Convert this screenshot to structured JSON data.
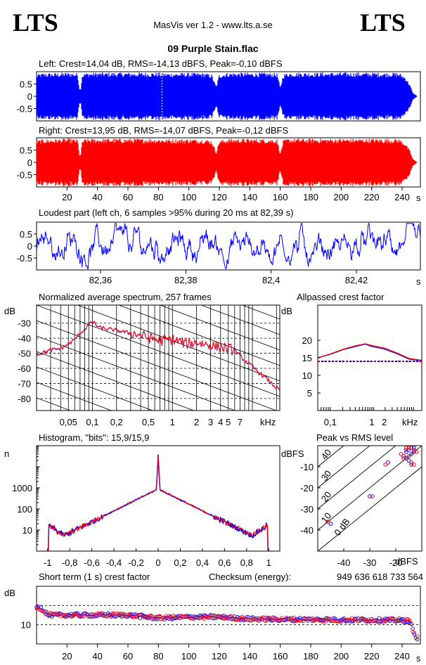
{
  "header": {
    "logo_left": "LTS",
    "logo_right": "LTS",
    "app": "MasVis ver 1.2 - www.lts.a.se",
    "file": "09 Purple Stain.flac"
  },
  "colors": {
    "left": "#0000ff",
    "right": "#ff0000"
  },
  "chart_data": [
    {
      "id": "left-waveform",
      "type": "area",
      "title": "Left: Crest=14,04 dB, RMS=-14,13 dBFS, Peak=-0,10 dBFS",
      "ytick_labels": [
        "0.5",
        "0",
        "-0.5"
      ],
      "ylim": [
        -1,
        1
      ],
      "xlim": [
        0,
        252
      ],
      "envelope": {
        "x": [
          0,
          5,
          10,
          20,
          27,
          28,
          29,
          30,
          32,
          40,
          60,
          80,
          85,
          100,
          110,
          115,
          118,
          120,
          125,
          130,
          140,
          150,
          158,
          160,
          162,
          165,
          180,
          200,
          220,
          238,
          242,
          245,
          247,
          250
        ],
        "amp": [
          0.9,
          0.95,
          0.95,
          0.97,
          0.95,
          0.35,
          0.3,
          0.9,
          0.96,
          0.97,
          0.97,
          0.97,
          0.95,
          0.96,
          0.95,
          0.9,
          0.4,
          0.9,
          0.96,
          0.97,
          0.96,
          0.96,
          0.95,
          0.35,
          0.9,
          0.97,
          0.97,
          0.97,
          0.97,
          0.96,
          0.8,
          0.5,
          0.15,
          0
        ]
      },
      "marker_x": 82.39
    },
    {
      "id": "right-waveform",
      "type": "area",
      "title": "Right: Crest=13,95 dB, RMS=-14,07 dBFS, Peak=-0,12 dBFS",
      "ytick_labels": [
        "0.5",
        "0",
        "-0.5"
      ],
      "ylim": [
        -1,
        1
      ],
      "xlim": [
        0,
        252
      ],
      "x_ticks": [
        20,
        40,
        60,
        80,
        100,
        120,
        140,
        160,
        180,
        200,
        220,
        240
      ],
      "x_unit": "s",
      "envelope": {
        "x": [
          0,
          5,
          10,
          20,
          27,
          28,
          29,
          30,
          32,
          40,
          60,
          80,
          85,
          100,
          110,
          115,
          118,
          120,
          125,
          130,
          140,
          150,
          158,
          160,
          162,
          165,
          180,
          200,
          220,
          238,
          242,
          245,
          247,
          250
        ],
        "amp": [
          0.9,
          0.95,
          0.95,
          0.97,
          0.95,
          0.35,
          0.3,
          0.9,
          0.96,
          0.97,
          0.97,
          0.97,
          0.95,
          0.96,
          0.95,
          0.9,
          0.4,
          0.9,
          0.96,
          0.97,
          0.96,
          0.96,
          0.95,
          0.35,
          0.9,
          0.97,
          0.97,
          0.97,
          0.97,
          0.96,
          0.8,
          0.5,
          0.15,
          0
        ]
      }
    },
    {
      "id": "loudest-part",
      "type": "line",
      "title": "Loudest part (left  ch, 6 samples >95% during 20 ms at 82,39 s)",
      "ytick_labels": [
        "0.5",
        "0",
        "-0.5"
      ],
      "ylim": [
        -1,
        1
      ],
      "xlim": [
        82.345,
        82.435
      ],
      "x_ticks": [
        82.36,
        82.38,
        82.4,
        82.42
      ],
      "x_tick_labels": [
        "82,36",
        "82,38",
        "82,4",
        "82,42"
      ],
      "x_unit": "s",
      "num_samples": 700
    },
    {
      "id": "spectrum",
      "type": "line",
      "title": "Normalized average spectrum, 257 frames",
      "ylabel": "dB",
      "ytick_labels": [
        "-30",
        "-40",
        "-50",
        "-60",
        "-70",
        "-80"
      ],
      "y_ticks": [
        -30,
        -40,
        -50,
        -60,
        -70,
        -80
      ],
      "ylim": [
        -88,
        -18
      ],
      "xlim": [
        0.02,
        22
      ],
      "x_ticks": [
        0.05,
        0.1,
        0.2,
        0.5,
        1,
        2,
        3,
        4,
        5,
        7
      ],
      "x_tick_labels": [
        "0,05",
        "0,1",
        "0,2",
        "0,5",
        "1",
        "2",
        "3",
        "4",
        "5",
        "7"
      ],
      "x_unit": "kHz",
      "points": {
        "f": [
          0.02,
          0.03,
          0.04,
          0.05,
          0.06,
          0.07,
          0.08,
          0.1,
          0.12,
          0.15,
          0.2,
          0.3,
          0.4,
          0.5,
          0.7,
          1,
          1.5,
          2,
          3,
          4,
          5,
          6,
          7,
          8,
          10,
          12,
          15,
          18,
          22
        ],
        "db": [
          -51,
          -48,
          -47,
          -44,
          -41,
          -37,
          -34,
          -29,
          -33,
          -34,
          -35,
          -37,
          -38,
          -40,
          -42,
          -41,
          -44,
          -43,
          -45,
          -46,
          -47,
          -48,
          -52,
          -55,
          -59,
          -63,
          -67,
          -71,
          -75
        ]
      }
    },
    {
      "id": "allpass-crest",
      "type": "line",
      "title": "Allpassed crest factor",
      "ylabel": "dB",
      "ytick_labels": [
        "20",
        "15",
        "10",
        "5"
      ],
      "y_ticks": [
        20,
        15,
        10,
        5
      ],
      "ylim": [
        0,
        30
      ],
      "xlim": [
        0.05,
        16
      ],
      "x_ticks": [
        0.1,
        1,
        2
      ],
      "x_tick_labels": [
        "0,1",
        "1",
        "2"
      ],
      "x_unit": "kHz",
      "baseline_db": 14,
      "series": [
        {
          "color": "#0000ff",
          "f": [
            0.05,
            0.1,
            0.2,
            0.4,
            0.7,
            1,
            2,
            4,
            8,
            16
          ],
          "db": [
            15,
            16,
            17.3,
            18.2,
            18.9,
            18.2,
            17.5,
            16.2,
            14.6,
            14.2
          ]
        },
        {
          "color": "#ff0000",
          "f": [
            0.05,
            0.1,
            0.2,
            0.4,
            0.7,
            1,
            2,
            4,
            8,
            16
          ],
          "db": [
            15,
            16.1,
            17.4,
            18.4,
            19,
            18.5,
            17.8,
            16.4,
            14.8,
            14.3
          ]
        }
      ]
    },
    {
      "id": "histogram",
      "type": "line",
      "title": "Histogram, \"bits\": 15,9/15,9",
      "ylabel": "n",
      "ytick_labels": [
        "1000",
        "100",
        "10"
      ],
      "y_ticks": [
        1000,
        100,
        10
      ],
      "ylim": [
        1,
        100000
      ],
      "xlim": [
        -1.1,
        1.1
      ],
      "x_ticks": [
        -1,
        -0.8,
        -0.6,
        -0.4,
        -0.2,
        0,
        0.2,
        0.4,
        0.6,
        0.8,
        1
      ],
      "x_tick_labels": [
        "-1",
        "-0,8",
        "-0,6",
        "-0,4",
        "-0,2",
        "0",
        "0,2",
        "0,4",
        "0,6",
        "0,8",
        "1"
      ],
      "center_peak_log": 4.6
    },
    {
      "id": "peak-vs-rms",
      "type": "scatter",
      "title": "Peak vs RMS level",
      "ylabel": "dBFS",
      "ytick_labels": [
        "-10",
        "-20",
        "-30",
        "-40"
      ],
      "y_ticks": [
        -10,
        -20,
        -30,
        -40
      ],
      "ylim": [
        -50,
        0
      ],
      "xlim": [
        -50,
        0
      ],
      "x_ticks": [
        -40,
        -30,
        -20
      ],
      "x_tick_labels": [
        "-40",
        "-30",
        "-20"
      ],
      "x_unit": "dBFS",
      "diag_labels": [
        "40",
        "30",
        "20",
        "10",
        "0 dB"
      ],
      "points_left": [
        [
          -16,
          -3
        ],
        [
          -15,
          -2
        ],
        [
          -14,
          -1
        ],
        [
          -13,
          -1
        ],
        [
          -17,
          -5
        ],
        [
          -15,
          -7
        ],
        [
          -14,
          -9
        ],
        [
          -14,
          -4
        ],
        [
          -23,
          -8
        ],
        [
          -30,
          -24
        ],
        [
          -45,
          -37
        ],
        [
          -16,
          -6
        ],
        [
          -13,
          -3
        ]
      ],
      "points_right": [
        [
          -16,
          -2
        ],
        [
          -15,
          -1
        ],
        [
          -14,
          -1
        ],
        [
          -13,
          -2
        ],
        [
          -18,
          -4
        ],
        [
          -14,
          -8
        ],
        [
          -13,
          -9
        ],
        [
          -15,
          -5
        ],
        [
          -24,
          -9
        ],
        [
          -29,
          -24
        ],
        [
          -46,
          -36
        ],
        [
          -17,
          -6
        ],
        [
          -12,
          -3
        ],
        [
          -16,
          -1
        ]
      ]
    },
    {
      "id": "short-term-crest",
      "type": "scatter",
      "title": "Short term (1 s) crest factor",
      "checksum_label": "Checksum (energy):",
      "checksum": "949 636 618 733 564",
      "ylabel": "dB",
      "ytick_labels": [
        "10"
      ],
      "y_ticks": [
        10
      ],
      "ref_lines": [
        10,
        20
      ],
      "ylim": [
        0,
        30
      ],
      "xlim": [
        0,
        252
      ],
      "x_ticks": [
        20,
        40,
        60,
        80,
        100,
        120,
        140,
        160,
        180,
        200,
        220,
        240
      ],
      "x_unit": "s",
      "trend": {
        "x": [
          0,
          3,
          8,
          20,
          40,
          60,
          80,
          100,
          120,
          140,
          160,
          180,
          200,
          220,
          240,
          245,
          248,
          250
        ],
        "y": [
          19,
          18.5,
          15,
          15,
          15,
          15,
          13.5,
          14,
          14,
          13,
          12.8,
          12.7,
          12.5,
          12.5,
          12.3,
          12,
          5,
          3
        ]
      }
    }
  ]
}
